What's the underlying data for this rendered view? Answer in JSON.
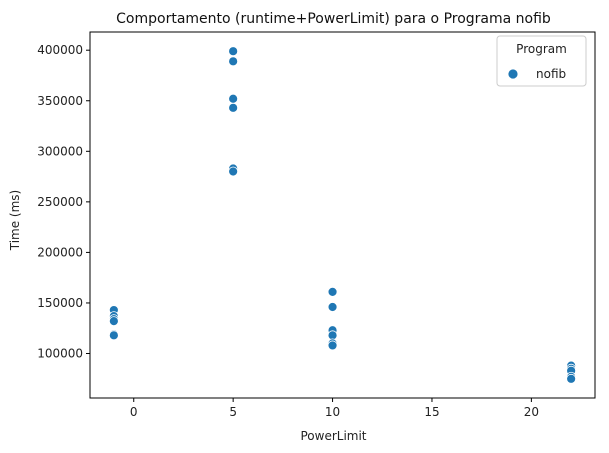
{
  "chart_data": {
    "type": "scatter",
    "title": "Comportamento (runtime+PowerLimit) para o Programa nofib",
    "xlabel": "PowerLimit",
    "ylabel": "Time (ms)",
    "xlim": [
      -2.2,
      23.2
    ],
    "ylim": [
      56000,
      418000
    ],
    "xticks": [
      0,
      5,
      10,
      15,
      20
    ],
    "yticks": [
      100000,
      150000,
      200000,
      250000,
      300000,
      350000,
      400000
    ],
    "grid": false,
    "legend": {
      "title": "Program",
      "position": "top-right"
    },
    "series": [
      {
        "name": "nofib",
        "color": "#1f77b4",
        "points": [
          [
            -1,
            143000
          ],
          [
            -1,
            137000
          ],
          [
            -1,
            134000
          ],
          [
            -1,
            132000
          ],
          [
            -1,
            119000
          ],
          [
            -1,
            118000
          ],
          [
            5,
            399000
          ],
          [
            5,
            389000
          ],
          [
            5,
            352000
          ],
          [
            5,
            343000
          ],
          [
            5,
            283000
          ],
          [
            5,
            280000
          ],
          [
            10,
            161000
          ],
          [
            10,
            146000
          ],
          [
            10,
            123000
          ],
          [
            10,
            118000
          ],
          [
            10,
            110000
          ],
          [
            10,
            108000
          ],
          [
            22,
            88000
          ],
          [
            22,
            85000
          ],
          [
            22,
            83000
          ],
          [
            22,
            77000
          ],
          [
            22,
            75000
          ]
        ]
      }
    ]
  }
}
